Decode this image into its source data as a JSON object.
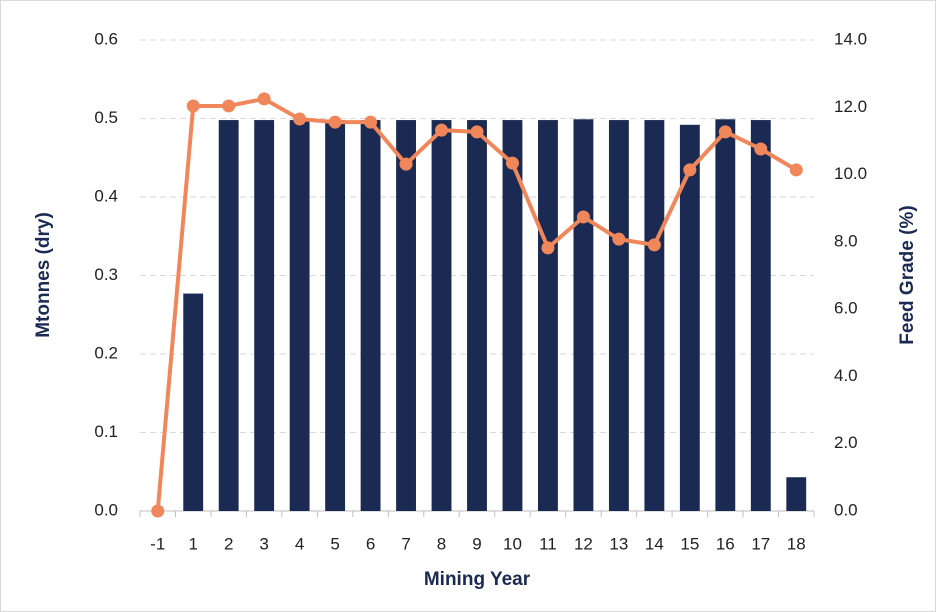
{
  "chart_data": {
    "type": "bar_line",
    "x_label": "Mining Year",
    "y_label": "Mtonnes (dry)",
    "y2_label": "Feed Grade (%)",
    "categories": [
      "-1",
      "1",
      "2",
      "3",
      "4",
      "5",
      "6",
      "7",
      "8",
      "9",
      "10",
      "11",
      "12",
      "13",
      "14",
      "15",
      "16",
      "17",
      "18"
    ],
    "series": [
      {
        "name": "Mtonnes (dry)",
        "type": "bar",
        "color": "#1b2a52",
        "values": [
          0,
          0.277,
          0.498,
          0.498,
          0.498,
          0.498,
          0.498,
          0.498,
          0.498,
          0.498,
          0.498,
          0.498,
          0.499,
          0.498,
          0.498,
          0.492,
          0.499,
          0.498,
          0.043
        ]
      },
      {
        "name": "Feed Grade (%)",
        "type": "line",
        "axis": "y2",
        "color": "#f0875a",
        "values": [
          0,
          12.04,
          12.04,
          12.25,
          11.65,
          11.56,
          11.56,
          10.31,
          11.32,
          11.27,
          10.34,
          7.82,
          8.74,
          8.08,
          7.91,
          10.14,
          11.27,
          10.76,
          10.14
        ]
      }
    ],
    "ylim": [
      0,
      0.6
    ],
    "yticks": [
      {
        "value": 0,
        "label": "0.0"
      },
      0.1,
      0.2,
      0.3,
      0.4,
      0.5,
      0.6
    ],
    "y2lim": [
      0,
      14
    ],
    "y2ticks": [
      {
        "value": 0,
        "label": "0.0"
      },
      {
        "value": 2,
        "label": "2.0"
      },
      {
        "value": 4,
        "label": "4.0"
      },
      {
        "value": 6,
        "label": "6.0"
      },
      {
        "value": 8,
        "label": "8.0"
      },
      {
        "value": 10,
        "label": "10.0"
      },
      {
        "value": 12,
        "label": "12.0"
      },
      {
        "value": 14,
        "label": "14.0"
      }
    ],
    "grid": true
  }
}
